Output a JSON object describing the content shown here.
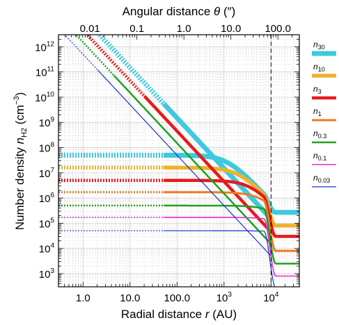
{
  "chart_data": {
    "type": "line",
    "xscale": "log",
    "yscale": "log",
    "xlim": [
      0.3,
      40000
    ],
    "ylim": [
      300,
      3000000000000.0
    ],
    "grid": true,
    "legend_position": "right",
    "vline_x": 10000,
    "xlabel_parts": [
      "Radial distance ",
      "r",
      " (AU)"
    ],
    "ylabel_parts": [
      "Number density ",
      "n",
      "H2",
      " (cm",
      "−3",
      ")"
    ],
    "top_xlabel_parts": [
      "Angular distance ",
      "θ",
      " (″)"
    ],
    "top_tick_labels": [
      {
        "label": "0.01",
        "value": 0.01
      },
      {
        "label": "0.1",
        "value": 0.1
      },
      {
        "label": "1.0",
        "value": 1.0
      },
      {
        "label": "10.0",
        "value": 10.0
      },
      {
        "label": "100.0",
        "value": 100.0
      }
    ],
    "bottom_tick_labels": [
      {
        "label": "1.0",
        "value": 1
      },
      {
        "label": "10.0",
        "value": 10
      },
      {
        "label": "100.0",
        "value": 100
      },
      {
        "label": "10",
        "sup": "3",
        "value": 1000
      },
      {
        "label": "10",
        "sup": "4",
        "value": 10000
      }
    ],
    "left_tick_labels": [
      {
        "label": "10",
        "sup": "3",
        "value": 1000.0
      },
      {
        "label": "10",
        "sup": "4",
        "value": 10000.0
      },
      {
        "label": "10",
        "sup": "5",
        "value": 100000.0
      },
      {
        "label": "10",
        "sup": "6",
        "value": 1000000.0
      },
      {
        "label": "10",
        "sup": "7",
        "value": 10000000.0
      },
      {
        "label": "10",
        "sup": "8",
        "value": 100000000.0
      },
      {
        "label": "10",
        "sup": "9",
        "value": 1000000000.0
      },
      {
        "label": "10",
        "sup": "10",
        "value": 10000000000.0
      },
      {
        "label": "10",
        "sup": "11",
        "value": 100000000000.0
      },
      {
        "label": "10",
        "sup": "12",
        "value": 1000000000000.0
      }
    ],
    "series": [
      {
        "name": "30",
        "color": "#3ec9de",
        "width": 7,
        "flat": [
          50000000.0,
          270000.0
        ],
        "powerlaw": {
          "n1000": 15000000.0,
          "xstart": 2,
          "dotted_until": 50
        }
      },
      {
        "name": "10",
        "color": "#efb22e",
        "width": 5.5,
        "flat": [
          16000000.0,
          80000.0
        ],
        "powerlaw": null
      },
      {
        "name": "3",
        "color": "#e61b1b",
        "width": 4.5,
        "flat": [
          5000000.0,
          30000.0
        ],
        "powerlaw": {
          "n1000": 4500000.0,
          "xstart": 0.8,
          "dotted_until": 20
        }
      },
      {
        "name": "1",
        "color": "#ef7a22",
        "width": 3,
        "flat": [
          1700000.0,
          8000.0
        ],
        "powerlaw": null
      },
      {
        "name": "0.3",
        "color": "#1ea01e",
        "width": 2.5,
        "flat": [
          500000.0,
          2500.0
        ],
        "powerlaw": {
          "n1000": 1500000.0,
          "xstart": 0.45,
          "dotted_until": 4.5
        }
      },
      {
        "name": "0.1",
        "color": "#df2ad4",
        "width": 1.6,
        "flat": [
          170000.0,
          800.0
        ],
        "powerlaw": null
      },
      {
        "name": "0.03",
        "color": "#1530cc",
        "width": 1.2,
        "flat": [
          50000.0,
          270.0
        ],
        "powerlaw": {
          "n1000": 500000.0,
          "xstart": 0.28,
          "dotted_until": 2
        }
      }
    ]
  }
}
